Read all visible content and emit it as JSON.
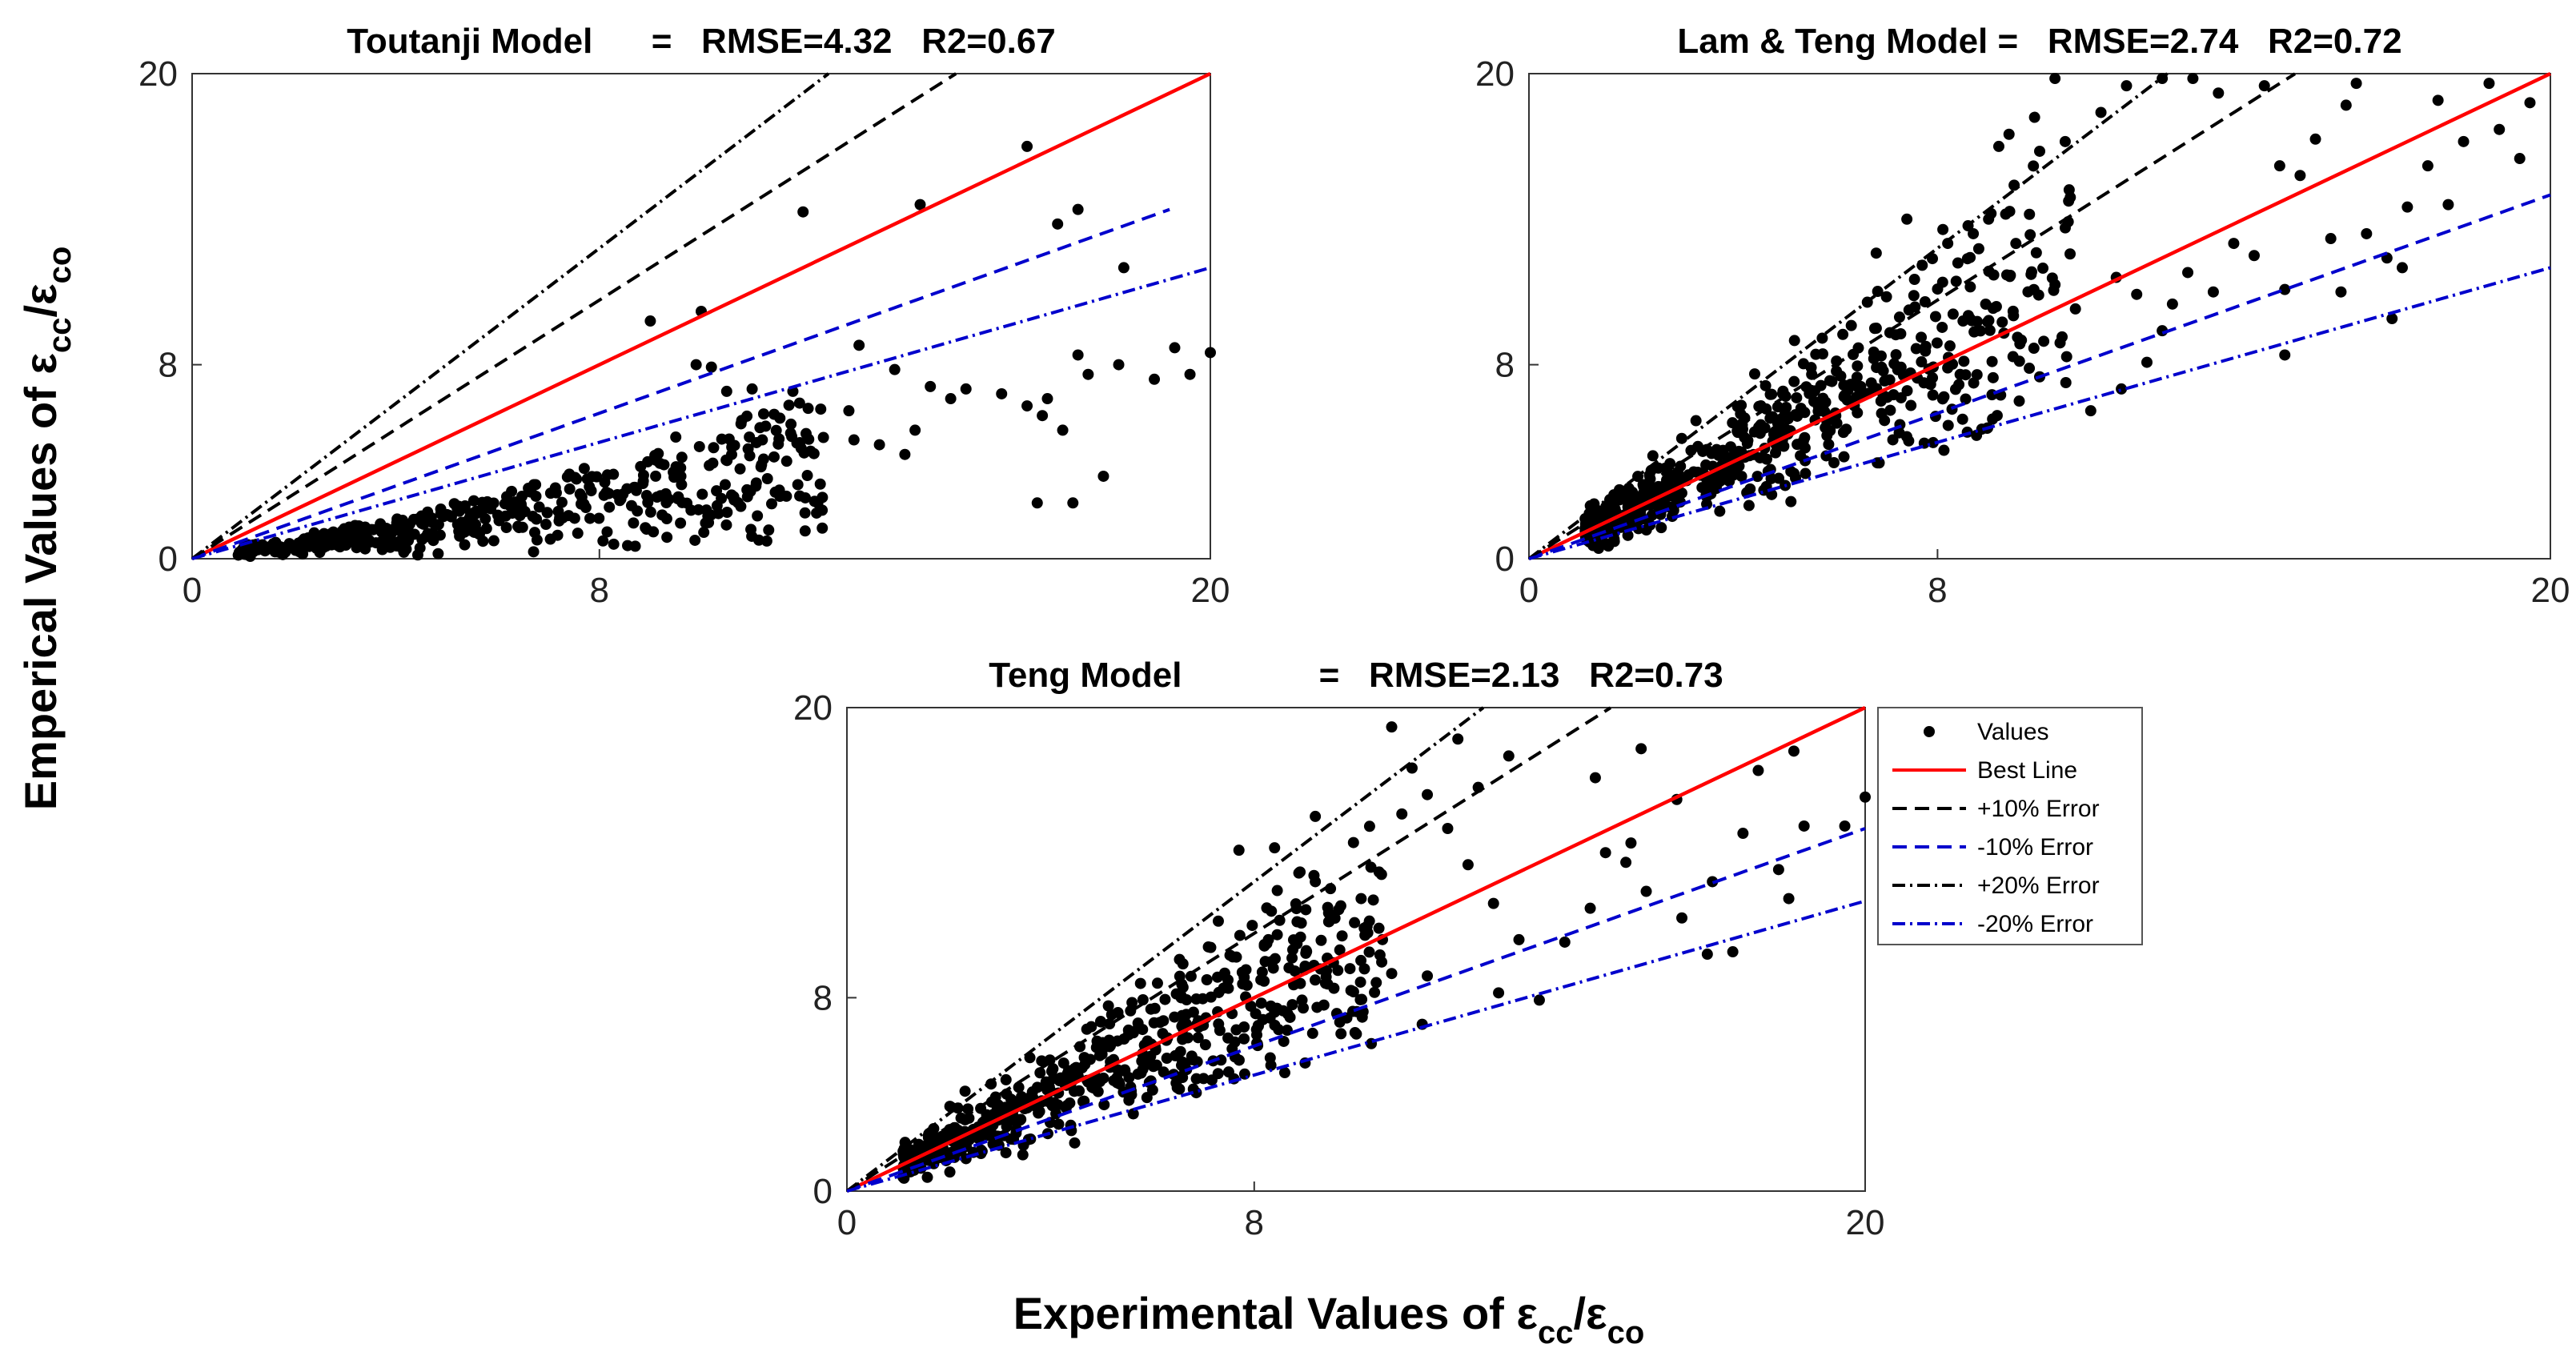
{
  "figure": {
    "xlabel": {
      "main": "Experimental Values of ε",
      "sub1": "cc",
      "sep": "/ε",
      "sub2": "co"
    },
    "ylabel": {
      "main": "Emperical Values of ε",
      "sub1": "cc",
      "sep": "/ε",
      "sub2": "co"
    }
  },
  "colors": {
    "data": "#000000",
    "best": "#ff0000",
    "plus": "#000000",
    "minus": "#0000cc",
    "axes": "#333333"
  },
  "legend": {
    "location": "right of bottom panel",
    "entries": [
      {
        "label": "Values",
        "style": "marker",
        "color": "#000000"
      },
      {
        "label": "Best Line",
        "style": "solid",
        "color": "#ff0000"
      },
      {
        "label": "+10% Error",
        "style": "dashed",
        "color": "#000000"
      },
      {
        "label": "-10% Error",
        "style": "dashed",
        "color": "#0000cc"
      },
      {
        "label": "+20% Error",
        "style": "dashdot",
        "color": "#000000"
      },
      {
        "label": "-20% Error",
        "style": "dashdot",
        "color": "#0000cc"
      }
    ]
  },
  "chart_data": [
    {
      "type": "scatter",
      "title": "Toutanji Model      =   RMSE=4.32   R2=0.67",
      "model": "Toutanji Model",
      "rmse": 4.32,
      "r2": 0.67,
      "xlim": [
        0,
        20
      ],
      "ylim": [
        0,
        20
      ],
      "xticks": [
        0,
        8,
        20
      ],
      "yticks": [
        0,
        8,
        20
      ],
      "reference_lines": [
        {
          "name": "Best Line",
          "slope": 1.0,
          "x_end": 20
        },
        {
          "name": "+10% Error",
          "slope": 1.333,
          "x_end": 15.5
        },
        {
          "name": "-10% Error",
          "slope": 0.75,
          "x_end": 19.2
        },
        {
          "name": "+20% Error",
          "slope": 1.6,
          "x_end": 20
        },
        {
          "name": "-20% Error",
          "slope": 0.6,
          "x_end": 20
        }
      ],
      "point_seed": 11,
      "points": [
        [
          16.4,
          17.0
        ],
        [
          14.3,
          14.6
        ],
        [
          12.0,
          14.3
        ],
        [
          10.0,
          10.2
        ],
        [
          9.0,
          9.8
        ],
        [
          17.0,
          13.8
        ],
        [
          17.4,
          14.4
        ],
        [
          18.3,
          12.0
        ],
        [
          19.3,
          8.7
        ],
        [
          20.0,
          8.5
        ],
        [
          19.6,
          7.6
        ],
        [
          18.9,
          7.4
        ],
        [
          18.2,
          8.0
        ],
        [
          17.6,
          7.6
        ],
        [
          17.4,
          8.4
        ],
        [
          17.1,
          5.3
        ],
        [
          16.7,
          5.9
        ],
        [
          16.4,
          6.3
        ],
        [
          16.8,
          6.6
        ],
        [
          17.9,
          3.4
        ],
        [
          17.3,
          2.3
        ],
        [
          16.6,
          2.3
        ],
        [
          15.9,
          6.8
        ],
        [
          15.2,
          7.0
        ],
        [
          14.9,
          6.6
        ],
        [
          14.5,
          7.1
        ],
        [
          13.8,
          7.8
        ],
        [
          13.1,
          8.8
        ],
        [
          12.9,
          6.1
        ],
        [
          12.4,
          5.0
        ],
        [
          13.5,
          4.7
        ],
        [
          14.0,
          4.3
        ],
        [
          14.2,
          5.3
        ],
        [
          13.0,
          4.9
        ],
        [
          12.1,
          6.2
        ],
        [
          11.8,
          6.9
        ],
        [
          11.0,
          7.0
        ],
        [
          10.5,
          6.9
        ],
        [
          10.2,
          7.9
        ],
        [
          9.9,
          8.0
        ],
        [
          11.2,
          4.9
        ],
        [
          10.6,
          4.6
        ],
        [
          11.3,
          3.3
        ],
        [
          10.3,
          2.8
        ],
        [
          9.6,
          3.4
        ],
        [
          9.2,
          2.6
        ],
        [
          8.4,
          2.4
        ],
        [
          9.8,
          2.0
        ]
      ]
    },
    {
      "type": "scatter",
      "title": "Lam & Teng Model =   RMSE=2.74   R2=0.72",
      "model": "Lam & Teng Model",
      "rmse": 2.74,
      "r2": 0.72,
      "xlim": [
        0,
        20
      ],
      "ylim": [
        0,
        20
      ],
      "xticks": [
        0,
        8,
        20
      ],
      "yticks": [
        0,
        8,
        20
      ],
      "reference_lines": [
        {
          "name": "Best Line",
          "slope": 1.0,
          "x_end": 20
        },
        {
          "name": "+10% Error",
          "slope": 1.333,
          "x_end": 15.0
        },
        {
          "name": "-10% Error",
          "slope": 0.75,
          "x_end": 20
        },
        {
          "name": "+20% Error",
          "slope": 1.6,
          "x_end": 12.5
        },
        {
          "name": "-20% Error",
          "slope": 0.6,
          "x_end": 20
        }
      ],
      "point_seed": 23,
      "points": [
        [
          19.6,
          18.8
        ],
        [
          19.4,
          16.5
        ],
        [
          19.0,
          17.7
        ],
        [
          18.8,
          19.6
        ],
        [
          18.3,
          17.2
        ],
        [
          18.0,
          14.6
        ],
        [
          17.8,
          18.9
        ],
        [
          17.6,
          16.2
        ],
        [
          17.2,
          14.5
        ],
        [
          16.8,
          12.4
        ],
        [
          16.2,
          19.6
        ],
        [
          16.0,
          18.7
        ],
        [
          15.4,
          17.3
        ],
        [
          15.1,
          15.8
        ],
        [
          14.7,
          16.2
        ],
        [
          14.4,
          19.5
        ],
        [
          14.8,
          11.1
        ],
        [
          14.2,
          12.5
        ],
        [
          13.8,
          13.0
        ],
        [
          15.7,
          13.2
        ],
        [
          16.4,
          13.4
        ],
        [
          17.1,
          12.0
        ],
        [
          16.9,
          9.9
        ],
        [
          15.9,
          11.0
        ],
        [
          14.8,
          8.4
        ],
        [
          13.4,
          11.0
        ],
        [
          12.9,
          11.8
        ],
        [
          12.6,
          10.5
        ],
        [
          11.9,
          10.9
        ],
        [
          11.5,
          11.6
        ],
        [
          12.4,
          9.4
        ],
        [
          12.1,
          8.1
        ],
        [
          11.6,
          7.0
        ],
        [
          11.0,
          6.1
        ],
        [
          10.7,
          10.3
        ],
        [
          10.3,
          11.3
        ],
        [
          10.4,
          8.9
        ],
        [
          10.0,
          7.5
        ],
        [
          9.6,
          6.5
        ],
        [
          9.3,
          9.3
        ],
        [
          13.0,
          19.8
        ],
        [
          13.5,
          19.2
        ],
        [
          12.4,
          19.8
        ],
        [
          11.7,
          19.5
        ],
        [
          10.3,
          19.8
        ],
        [
          9.9,
          18.2
        ],
        [
          9.4,
          17.5
        ],
        [
          9.2,
          17.0
        ],
        [
          10.0,
          16.8
        ],
        [
          10.6,
          14.9
        ],
        [
          9.8,
          14.2
        ],
        [
          9.0,
          14.0
        ],
        [
          8.7,
          13.4
        ],
        [
          8.2,
          13.0
        ],
        [
          7.7,
          12.1
        ],
        [
          7.0,
          10.8
        ],
        [
          6.8,
          12.6
        ],
        [
          7.4,
          14.0
        ],
        [
          8.1,
          11.4
        ],
        [
          8.5,
          9.8
        ],
        [
          9.1,
          11.7
        ],
        [
          9.5,
          15.4
        ],
        [
          10.5,
          17.2
        ],
        [
          11.2,
          18.4
        ]
      ]
    },
    {
      "type": "scatter",
      "title": "Teng Model              =   RMSE=2.13   R2=0.73",
      "model": "Teng Model",
      "rmse": 2.13,
      "r2": 0.73,
      "xlim": [
        0,
        20
      ],
      "ylim": [
        0,
        20
      ],
      "xticks": [
        0,
        8,
        20
      ],
      "yticks": [
        0,
        8,
        20
      ],
      "reference_lines": [
        {
          "name": "Best Line",
          "slope": 1.0,
          "x_end": 20
        },
        {
          "name": "+10% Error",
          "slope": 1.333,
          "x_end": 15.0
        },
        {
          "name": "-10% Error",
          "slope": 0.75,
          "x_end": 20
        },
        {
          "name": "+20% Error",
          "slope": 1.6,
          "x_end": 12.5
        },
        {
          "name": "-20% Error",
          "slope": 0.6,
          "x_end": 20
        }
      ],
      "point_seed": 37,
      "points": [
        [
          20.0,
          16.3
        ],
        [
          19.6,
          15.1
        ],
        [
          18.8,
          15.1
        ],
        [
          18.3,
          13.3
        ],
        [
          18.6,
          18.2
        ],
        [
          17.6,
          14.8
        ],
        [
          17.0,
          12.8
        ],
        [
          17.4,
          9.9
        ],
        [
          16.9,
          9.8
        ],
        [
          16.4,
          11.3
        ],
        [
          15.7,
          12.4
        ],
        [
          15.3,
          13.6
        ],
        [
          14.9,
          14.0
        ],
        [
          15.4,
          14.4
        ],
        [
          15.6,
          18.3
        ],
        [
          16.3,
          16.2
        ],
        [
          14.6,
          11.7
        ],
        [
          14.1,
          10.3
        ],
        [
          13.6,
          7.9
        ],
        [
          13.2,
          10.4
        ],
        [
          12.7,
          11.9
        ],
        [
          12.2,
          13.5
        ],
        [
          11.8,
          15.0
        ],
        [
          12.4,
          16.7
        ],
        [
          12.0,
          18.7
        ],
        [
          10.7,
          19.2
        ],
        [
          11.1,
          17.5
        ],
        [
          11.4,
          16.4
        ],
        [
          10.9,
          15.6
        ],
        [
          10.5,
          13.1
        ],
        [
          10.1,
          12.1
        ],
        [
          9.7,
          11.8
        ],
        [
          9.2,
          12.8
        ],
        [
          8.9,
          13.2
        ],
        [
          8.5,
          11.2
        ],
        [
          8.2,
          10.2
        ],
        [
          8.8,
          9.1
        ],
        [
          9.4,
          8.6
        ],
        [
          9.9,
          8.3
        ],
        [
          10.7,
          9.0
        ],
        [
          11.4,
          8.9
        ],
        [
          12.8,
          8.2
        ],
        [
          11.3,
          6.9
        ],
        [
          10.3,
          6.1
        ],
        [
          9.0,
          5.3
        ],
        [
          8.6,
          4.9
        ],
        [
          8.4,
          7.4
        ],
        [
          7.8,
          6.3
        ],
        [
          7.4,
          8.4
        ],
        [
          7.1,
          10.1
        ],
        [
          6.6,
          9.4
        ],
        [
          6.1,
          8.6
        ],
        [
          5.6,
          7.8
        ],
        [
          5.2,
          7.3
        ],
        [
          4.8,
          6.8
        ],
        [
          9.2,
          15.5
        ],
        [
          8.4,
          14.2
        ],
        [
          7.7,
          14.1
        ],
        [
          13.0,
          18.0
        ],
        [
          14.7,
          17.1
        ],
        [
          17.9,
          17.4
        ],
        [
          18.5,
          12.1
        ]
      ]
    }
  ]
}
